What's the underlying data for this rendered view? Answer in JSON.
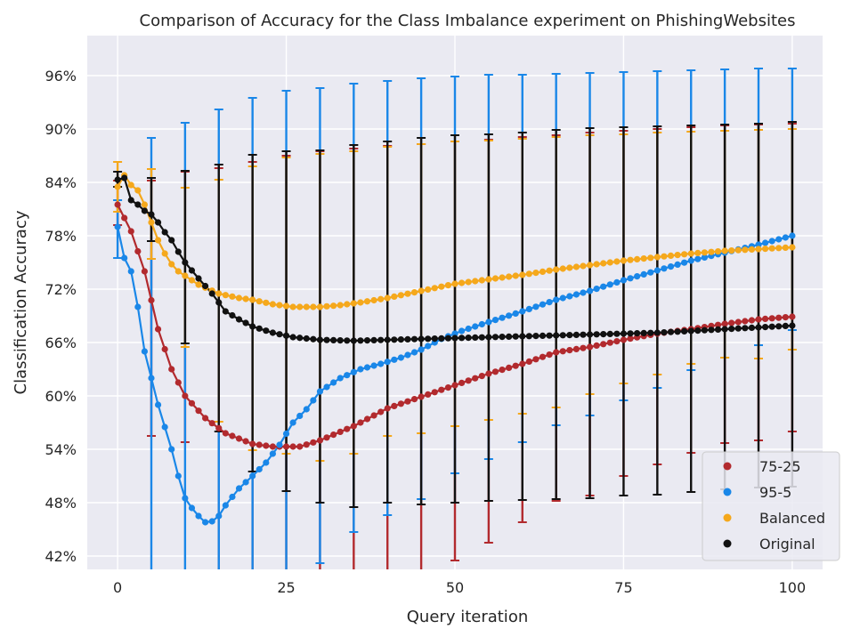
{
  "chart_data": {
    "type": "scatter",
    "title": "Comparison of Accuracy for the Class Imbalance experiment on PhishingWebsites",
    "xlabel": "Query iteration",
    "ylabel": "Classification Accuracy",
    "xlim": [
      -4.5,
      104.5
    ],
    "ylim": [
      40.5,
      100.5
    ],
    "xticks": [
      0,
      25,
      50,
      75,
      100
    ],
    "yticks": [
      42,
      48,
      54,
      60,
      66,
      72,
      78,
      84,
      90,
      96
    ],
    "ytick_labels": [
      "42%",
      "48%",
      "54%",
      "60%",
      "66%",
      "72%",
      "78%",
      "84%",
      "90%",
      "96%"
    ],
    "grid": true,
    "legend_position": "bottom-right",
    "style": {
      "background": "#eaeaf2",
      "grid_color": "#ffffff"
    },
    "errorbar_x": [
      0,
      5,
      10,
      15,
      20,
      25,
      30,
      35,
      40,
      45,
      50,
      55,
      60,
      65,
      70,
      75,
      80,
      85,
      90,
      95,
      100
    ],
    "series": [
      {
        "name": "75-25",
        "color": "#b22a2e",
        "keypoints": [
          [
            0,
            81.5
          ],
          [
            2,
            78.5
          ],
          [
            4,
            74
          ],
          [
            6,
            67.5
          ],
          [
            8,
            63
          ],
          [
            10,
            60
          ],
          [
            13,
            57.5
          ],
          [
            16,
            55.8
          ],
          [
            20,
            54.6
          ],
          [
            23,
            54.3
          ],
          [
            27,
            54.3
          ],
          [
            30,
            55
          ],
          [
            35,
            56.6
          ],
          [
            40,
            58.6
          ],
          [
            45,
            59.9
          ],
          [
            50,
            61.2
          ],
          [
            55,
            62.5
          ],
          [
            60,
            63.6
          ],
          [
            65,
            64.9
          ],
          [
            70,
            65.5
          ],
          [
            75,
            66.3
          ],
          [
            80,
            67
          ],
          [
            85,
            67.5
          ],
          [
            90,
            68.1
          ],
          [
            95,
            68.6
          ],
          [
            100,
            68.9
          ]
        ],
        "errorbars": [
          [
            79.2,
            84.2
          ],
          [
            55.5,
            84.2
          ],
          [
            54.8,
            85.2
          ],
          [
            40.5,
            85.6
          ],
          [
            40.5,
            86.3
          ],
          [
            40.5,
            87
          ],
          [
            40.5,
            87.5
          ],
          [
            40.5,
            87.8
          ],
          [
            40.5,
            88.1
          ],
          [
            40.5,
            88.3
          ],
          [
            41.5,
            88.6
          ],
          [
            43.5,
            88.8
          ],
          [
            45.8,
            89.1
          ],
          [
            48.2,
            89.3
          ],
          [
            48.8,
            89.6
          ],
          [
            51,
            89.8
          ],
          [
            52.3,
            90
          ],
          [
            53.6,
            90.2
          ],
          [
            54.7,
            90.4
          ],
          [
            55,
            90.5
          ],
          [
            56,
            90.6
          ]
        ]
      },
      {
        "name": "95-5",
        "color": "#1a87e8",
        "keypoints": [
          [
            0,
            79
          ],
          [
            1,
            75.5
          ],
          [
            2,
            74
          ],
          [
            3,
            70
          ],
          [
            4,
            65
          ],
          [
            5,
            62
          ],
          [
            6,
            59
          ],
          [
            7,
            56.5
          ],
          [
            8,
            54
          ],
          [
            9,
            51
          ],
          [
            10,
            48.5
          ],
          [
            11,
            47.4
          ],
          [
            12,
            46.5
          ],
          [
            13,
            45.8
          ],
          [
            14,
            45.9
          ],
          [
            15,
            46.5
          ],
          [
            16,
            47.7
          ],
          [
            18,
            49.6
          ],
          [
            20,
            51
          ],
          [
            22,
            52.5
          ],
          [
            24,
            54.5
          ],
          [
            26,
            57
          ],
          [
            28,
            58.5
          ],
          [
            30,
            60.5
          ],
          [
            33,
            62
          ],
          [
            36,
            63
          ],
          [
            39,
            63.6
          ],
          [
            42,
            64.3
          ],
          [
            45,
            65.2
          ],
          [
            48,
            66.4
          ],
          [
            51,
            67.3
          ],
          [
            55,
            68.3
          ],
          [
            60,
            69.5
          ],
          [
            65,
            70.8
          ],
          [
            70,
            71.8
          ],
          [
            75,
            73
          ],
          [
            80,
            74.1
          ],
          [
            85,
            75.2
          ],
          [
            90,
            76.1
          ],
          [
            95,
            77
          ],
          [
            100,
            78
          ]
        ],
        "errorbars": [
          [
            75.5,
            82
          ],
          [
            40.5,
            89
          ],
          [
            40.5,
            90.7
          ],
          [
            40.5,
            92.2
          ],
          [
            40.5,
            93.5
          ],
          [
            40.5,
            94.3
          ],
          [
            41.2,
            94.6
          ],
          [
            44.7,
            95.1
          ],
          [
            46.6,
            95.4
          ],
          [
            48.4,
            95.7
          ],
          [
            51.3,
            95.9
          ],
          [
            52.9,
            96.1
          ],
          [
            54.8,
            96.1
          ],
          [
            56.7,
            96.2
          ],
          [
            57.8,
            96.3
          ],
          [
            59.5,
            96.4
          ],
          [
            60.9,
            96.5
          ],
          [
            62.9,
            96.6
          ],
          [
            64.3,
            96.7
          ],
          [
            65.7,
            96.8
          ],
          [
            67.4,
            96.8
          ]
        ]
      },
      {
        "name": "Balanced",
        "color": "#f5a81c",
        "keypoints": [
          [
            0,
            83.5
          ],
          [
            1,
            84.8
          ],
          [
            2,
            83.7
          ],
          [
            3,
            83.1
          ],
          [
            4,
            81.5
          ],
          [
            5,
            79.5
          ],
          [
            6,
            77.5
          ],
          [
            7,
            76
          ],
          [
            8,
            74.8
          ],
          [
            9,
            74
          ],
          [
            10,
            73.5
          ],
          [
            12,
            72.5
          ],
          [
            15,
            71.5
          ],
          [
            18,
            71
          ],
          [
            20,
            70.8
          ],
          [
            23,
            70.3
          ],
          [
            26,
            70
          ],
          [
            30,
            70
          ],
          [
            33,
            70.2
          ],
          [
            36,
            70.5
          ],
          [
            40,
            71
          ],
          [
            45,
            71.8
          ],
          [
            50,
            72.6
          ],
          [
            55,
            73.1
          ],
          [
            60,
            73.6
          ],
          [
            65,
            74.2
          ],
          [
            70,
            74.7
          ],
          [
            75,
            75.2
          ],
          [
            80,
            75.6
          ],
          [
            85,
            76
          ],
          [
            90,
            76.3
          ],
          [
            95,
            76.5
          ],
          [
            100,
            76.7
          ]
        ],
        "errorbars": [
          [
            80.7,
            86.3
          ],
          [
            75.4,
            85.5
          ],
          [
            65.5,
            83.4
          ],
          [
            57.1,
            84.3
          ],
          [
            53.9,
            85.8
          ],
          [
            53.5,
            86.8
          ],
          [
            52.7,
            87.2
          ],
          [
            53.5,
            87.5
          ],
          [
            55.5,
            88
          ],
          [
            55.8,
            88.3
          ],
          [
            56.6,
            88.6
          ],
          [
            57.3,
            88.7
          ],
          [
            58,
            88.9
          ],
          [
            58.7,
            89.1
          ],
          [
            60.2,
            89.3
          ],
          [
            61.4,
            89.4
          ],
          [
            62.4,
            89.6
          ],
          [
            63.6,
            89.7
          ],
          [
            64.3,
            89.8
          ],
          [
            64.2,
            89.9
          ],
          [
            65.2,
            90
          ]
        ]
      },
      {
        "name": "Original",
        "color": "#111111",
        "keypoints": [
          [
            0,
            84.3
          ],
          [
            1,
            84.5
          ],
          [
            2,
            82
          ],
          [
            3,
            81.5
          ],
          [
            4,
            80.8
          ],
          [
            5,
            80.4
          ],
          [
            6,
            79.5
          ],
          [
            7,
            78.4
          ],
          [
            8,
            77.5
          ],
          [
            9,
            76.2
          ],
          [
            10,
            75
          ],
          [
            12,
            73.2
          ],
          [
            14,
            71.5
          ],
          [
            16,
            69.5
          ],
          [
            18,
            68.6
          ],
          [
            20,
            67.8
          ],
          [
            23,
            67.1
          ],
          [
            26,
            66.6
          ],
          [
            30,
            66.3
          ],
          [
            35,
            66.2
          ],
          [
            40,
            66.3
          ],
          [
            45,
            66.4
          ],
          [
            50,
            66.5
          ],
          [
            55,
            66.6
          ],
          [
            60,
            66.7
          ],
          [
            65,
            66.8
          ],
          [
            70,
            66.9
          ],
          [
            75,
            67
          ],
          [
            80,
            67.1
          ],
          [
            85,
            67.3
          ],
          [
            90,
            67.5
          ],
          [
            95,
            67.7
          ],
          [
            100,
            67.9
          ]
        ],
        "errorbars": [
          [
            83.5,
            85.2
          ],
          [
            77.4,
            84.5
          ],
          [
            65.9,
            85.3
          ],
          [
            56,
            86
          ],
          [
            51.5,
            87.1
          ],
          [
            49.3,
            87.5
          ],
          [
            48,
            87.6
          ],
          [
            47.5,
            88.2
          ],
          [
            48,
            88.6
          ],
          [
            47.8,
            89
          ],
          [
            48,
            89.3
          ],
          [
            48.2,
            89.4
          ],
          [
            48.3,
            89.6
          ],
          [
            48.4,
            89.9
          ],
          [
            48.5,
            90.1
          ],
          [
            48.8,
            90.2
          ],
          [
            48.9,
            90.3
          ],
          [
            49.2,
            90.4
          ],
          [
            49.5,
            90.5
          ],
          [
            49.7,
            90.6
          ],
          [
            49.8,
            90.8
          ]
        ]
      }
    ]
  }
}
